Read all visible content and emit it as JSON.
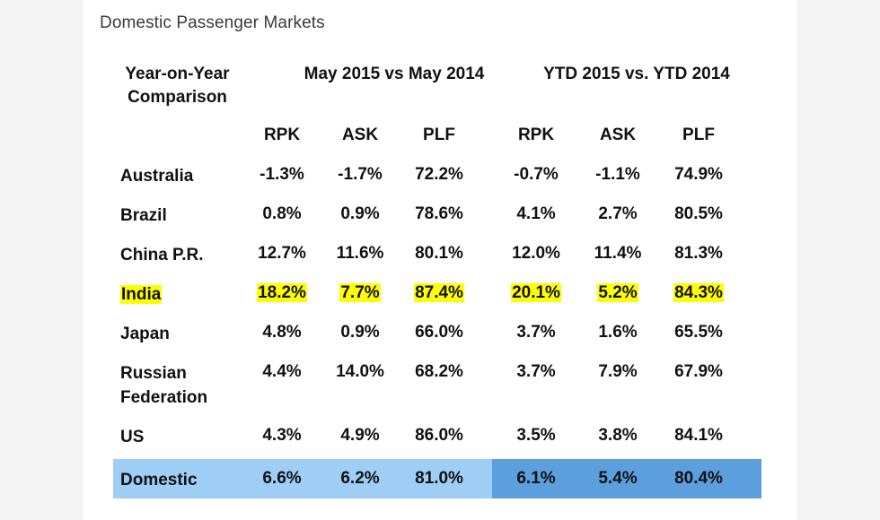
{
  "title": "Domestic Passenger Markets",
  "headers": {
    "yoy_line1": "Year-on-Year",
    "yoy_line2": "Comparison",
    "group1": "May 2015 vs May 2014",
    "group2": "YTD 2015 vs. YTD 2014",
    "sub": [
      "RPK",
      "ASK",
      "PLF",
      "RPK",
      "ASK",
      "PLF"
    ]
  },
  "rows": [
    {
      "country": "Australia",
      "values": [
        "-1.3%",
        "-1.7%",
        "72.2%",
        "-0.7%",
        "-1.1%",
        "74.9%"
      ]
    },
    {
      "country": "Brazil",
      "values": [
        "0.8%",
        "0.9%",
        "78.6%",
        "4.1%",
        "2.7%",
        "80.5%"
      ]
    },
    {
      "country": "China P.R.",
      "values": [
        "12.7%",
        "11.6%",
        "80.1%",
        "12.0%",
        "11.4%",
        "81.3%"
      ]
    },
    {
      "country": "India",
      "values": [
        "18.2%",
        "7.7%",
        "87.4%",
        "20.1%",
        "5.2%",
        "84.3%"
      ]
    },
    {
      "country": "Japan",
      "values": [
        "4.8%",
        "0.9%",
        "66.0%",
        "3.7%",
        "1.6%",
        "65.5%"
      ]
    },
    {
      "country_line1": "Russian",
      "country_line2": "Federation",
      "values": [
        "4.4%",
        "14.0%",
        "68.2%",
        "3.7%",
        "7.9%",
        "67.9%"
      ]
    },
    {
      "country": "US",
      "values": [
        "4.3%",
        "4.9%",
        "86.0%",
        "3.5%",
        "3.8%",
        "84.1%"
      ]
    },
    {
      "country": "Domestic",
      "values": [
        "6.6%",
        "6.2%",
        "81.0%",
        "6.1%",
        "5.4%",
        "80.4%"
      ]
    }
  ],
  "colors": {
    "highlight_yellow": "#ffff00",
    "domestic_light_blue": "#9ecdf5",
    "domestic_dark_blue": "#5c9fdf"
  }
}
